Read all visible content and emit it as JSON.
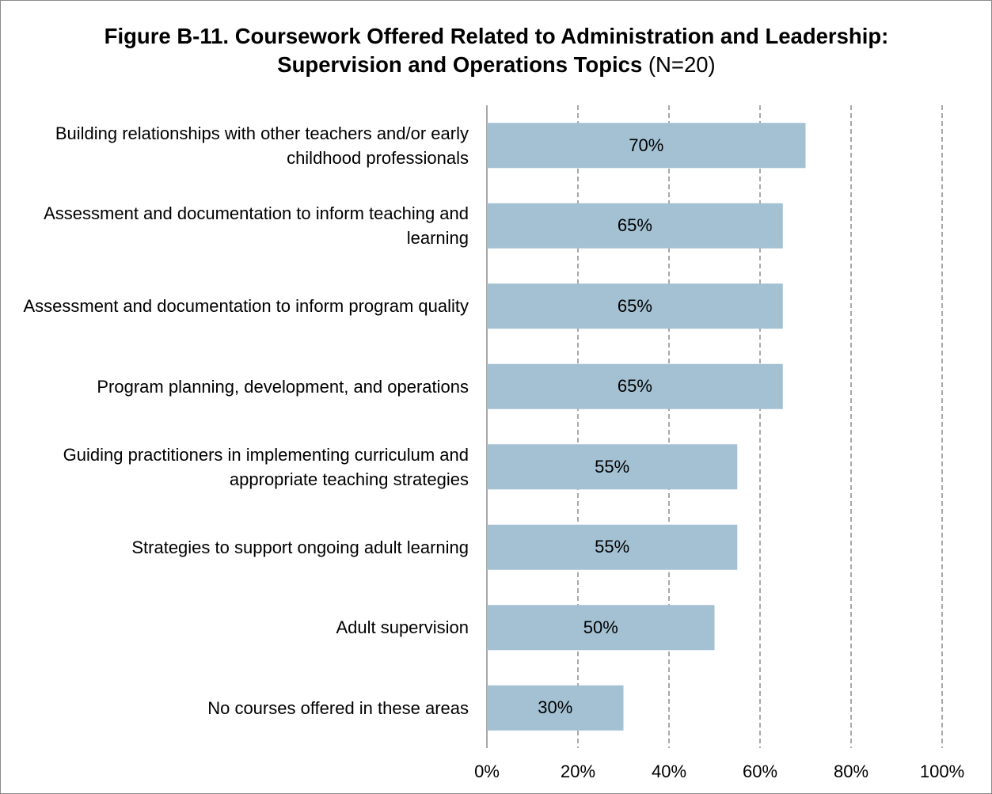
{
  "chart_data": {
    "type": "bar",
    "orientation": "horizontal",
    "title": "Figure B-11. Coursework Offered Related to Administration and Leadership: Supervision and Operations Topics",
    "subtitle": "(N=20)",
    "categories": [
      "Building relationships with other teachers and/or early childhood professionals",
      "Assessment and documentation to inform teaching and learning",
      "Assessment and documentation to inform program quality",
      "Program planning, development, and operations",
      "Guiding practitioners in implementing curriculum and appropriate teaching strategies",
      "Strategies to support ongoing adult learning",
      "Adult supervision",
      "No courses offered in these areas"
    ],
    "values": [
      70,
      65,
      65,
      65,
      55,
      55,
      50,
      30
    ],
    "value_labels": [
      "70%",
      "65%",
      "65%",
      "65%",
      "55%",
      "55%",
      "50%",
      "30%"
    ],
    "color": "#a3c1d3",
    "xlim": [
      0,
      100
    ],
    "xticks": [
      {
        "value": 0,
        "label": "0%"
      },
      {
        "value": 20,
        "label": "20%"
      },
      {
        "value": 40,
        "label": "40%"
      },
      {
        "value": 60,
        "label": "60%"
      },
      {
        "value": 80,
        "label": "80%"
      },
      {
        "value": 100,
        "label": "100%"
      }
    ],
    "grid": true
  }
}
